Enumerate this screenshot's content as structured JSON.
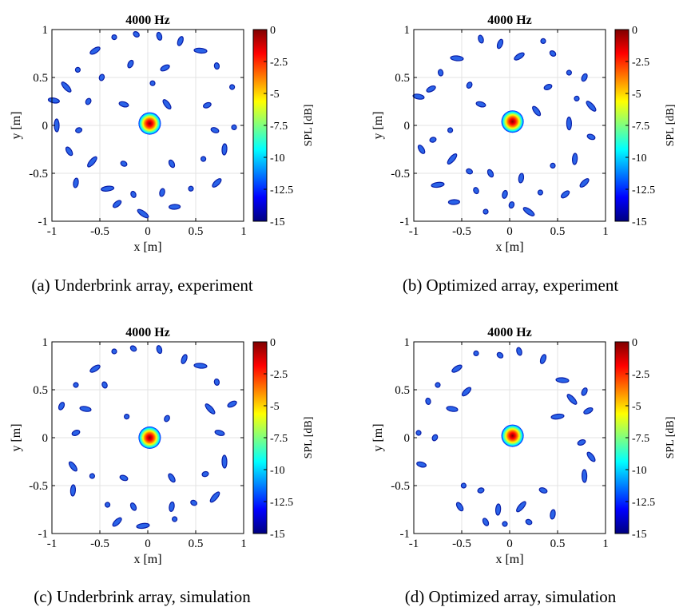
{
  "colors": {
    "colormap": [
      "#00007f",
      "#0000ff",
      "#007fff",
      "#00ffff",
      "#7fff7f",
      "#ffff00",
      "#ff7f00",
      "#ff0000",
      "#7f0000"
    ],
    "axis": "#000000",
    "grid": "#e3e3e3",
    "blob_face": "#2a63e8",
    "blob_edge": "#0a1fa8"
  },
  "chart_data": [
    {
      "type": "heatmap",
      "title": "4000 Hz",
      "xlabel": "x [m]",
      "ylabel": "y [m]",
      "xlim": [
        -1,
        1
      ],
      "ylim": [
        -1,
        1
      ],
      "xticks": [
        -1,
        -0.5,
        0,
        0.5,
        1
      ],
      "yticks": [
        -1,
        -0.5,
        0,
        0.5,
        1
      ],
      "xtick_labels": [
        "-1",
        "-0.5",
        "0",
        "0.5",
        "1"
      ],
      "ytick_labels": [
        "-1",
        "-0.5",
        "0",
        "0.5",
        "1"
      ],
      "grid": true,
      "colorbar": {
        "label": "SPL [dB]",
        "range": [
          -15,
          0
        ],
        "ticks": [
          "0",
          "-2.5",
          "-5",
          "-7.5",
          "-10",
          "-12.5",
          "-15"
        ]
      },
      "caption": "(a)  Underbrink array, experiment",
      "main_source": {
        "x": 0.02,
        "y": 0.02,
        "peak_db": 0
      },
      "sidelobes": [
        {
          "x": -0.35,
          "y": 0.92
        },
        {
          "x": -0.12,
          "y": 0.95
        },
        {
          "x": 0.12,
          "y": 0.93
        },
        {
          "x": 0.34,
          "y": 0.88
        },
        {
          "x": -0.55,
          "y": 0.78
        },
        {
          "x": 0.55,
          "y": 0.78
        },
        {
          "x": -0.73,
          "y": 0.58
        },
        {
          "x": 0.72,
          "y": 0.62
        },
        {
          "x": -0.18,
          "y": 0.64
        },
        {
          "x": 0.18,
          "y": 0.6
        },
        {
          "x": -0.98,
          "y": 0.26
        },
        {
          "x": -0.85,
          "y": 0.4
        },
        {
          "x": 0.88,
          "y": 0.4
        },
        {
          "x": -0.62,
          "y": 0.25
        },
        {
          "x": 0.62,
          "y": 0.21
        },
        {
          "x": -0.25,
          "y": 0.22
        },
        {
          "x": 0.2,
          "y": 0.22
        },
        {
          "x": -0.95,
          "y": 0.0
        },
        {
          "x": 0.9,
          "y": -0.02
        },
        {
          "x": -0.72,
          "y": -0.05
        },
        {
          "x": 0.7,
          "y": -0.05
        },
        {
          "x": -0.82,
          "y": -0.27
        },
        {
          "x": 0.8,
          "y": -0.25
        },
        {
          "x": -0.58,
          "y": -0.38
        },
        {
          "x": 0.58,
          "y": -0.35
        },
        {
          "x": -0.25,
          "y": -0.4
        },
        {
          "x": 0.25,
          "y": -0.4
        },
        {
          "x": -0.75,
          "y": -0.6
        },
        {
          "x": 0.72,
          "y": -0.6
        },
        {
          "x": -0.42,
          "y": -0.66
        },
        {
          "x": 0.45,
          "y": -0.66
        },
        {
          "x": -0.15,
          "y": -0.72
        },
        {
          "x": 0.15,
          "y": -0.7
        },
        {
          "x": -0.32,
          "y": -0.82
        },
        {
          "x": 0.28,
          "y": -0.85
        },
        {
          "x": -0.05,
          "y": -0.92
        },
        {
          "x": 0.05,
          "y": 0.44
        },
        {
          "x": -0.48,
          "y": 0.5
        }
      ]
    },
    {
      "type": "heatmap",
      "title": "4000 Hz",
      "xlabel": "x [m]",
      "ylabel": "y [m]",
      "xlim": [
        -1,
        1
      ],
      "ylim": [
        -1,
        1
      ],
      "xticks": [
        -1,
        -0.5,
        0,
        0.5,
        1
      ],
      "yticks": [
        -1,
        -0.5,
        0,
        0.5,
        1
      ],
      "xtick_labels": [
        "-1",
        "-0.5",
        "0",
        "0.5",
        "1"
      ],
      "ytick_labels": [
        "-1",
        "-0.5",
        "0",
        "0.5",
        "1"
      ],
      "grid": true,
      "colorbar": {
        "label": "SPL [dB]",
        "range": [
          -15,
          0
        ],
        "ticks": [
          "0",
          "-2.5",
          "-5",
          "-7.5",
          "-10",
          "-12.5",
          "-15"
        ]
      },
      "caption": "(b)  Optimized array, experiment",
      "main_source": {
        "x": 0.03,
        "y": 0.04,
        "peak_db": 0
      },
      "sidelobes": [
        {
          "x": 0.35,
          "y": 0.88
        },
        {
          "x": 0.45,
          "y": 0.75
        },
        {
          "x": -0.3,
          "y": 0.9
        },
        {
          "x": -0.1,
          "y": 0.85
        },
        {
          "x": 0.1,
          "y": 0.72
        },
        {
          "x": -0.55,
          "y": 0.7
        },
        {
          "x": 0.62,
          "y": 0.55
        },
        {
          "x": -0.72,
          "y": 0.55
        },
        {
          "x": 0.78,
          "y": 0.5
        },
        {
          "x": -0.82,
          "y": 0.38
        },
        {
          "x": -0.95,
          "y": 0.3
        },
        {
          "x": 0.85,
          "y": 0.2
        },
        {
          "x": 0.7,
          "y": 0.28
        },
        {
          "x": -0.42,
          "y": 0.42
        },
        {
          "x": 0.4,
          "y": 0.4
        },
        {
          "x": -0.3,
          "y": 0.22
        },
        {
          "x": 0.28,
          "y": 0.15
        },
        {
          "x": 0.62,
          "y": 0.02
        },
        {
          "x": -0.62,
          "y": -0.05
        },
        {
          "x": -0.8,
          "y": -0.15
        },
        {
          "x": 0.85,
          "y": -0.12
        },
        {
          "x": -0.92,
          "y": -0.25
        },
        {
          "x": 0.68,
          "y": -0.35
        },
        {
          "x": -0.6,
          "y": -0.35
        },
        {
          "x": 0.45,
          "y": -0.42
        },
        {
          "x": -0.42,
          "y": -0.48
        },
        {
          "x": -0.2,
          "y": -0.5
        },
        {
          "x": 0.12,
          "y": -0.55
        },
        {
          "x": 0.78,
          "y": -0.6
        },
        {
          "x": -0.75,
          "y": -0.62
        },
        {
          "x": 0.32,
          "y": -0.7
        },
        {
          "x": -0.35,
          "y": -0.68
        },
        {
          "x": -0.05,
          "y": -0.72
        },
        {
          "x": 0.58,
          "y": -0.72
        },
        {
          "x": -0.58,
          "y": -0.8
        },
        {
          "x": 0.2,
          "y": -0.9
        },
        {
          "x": -0.25,
          "y": -0.9
        },
        {
          "x": 0.02,
          "y": -0.83
        }
      ]
    },
    {
      "type": "heatmap",
      "title": "4000 Hz",
      "xlabel": "x [m]",
      "ylabel": "y [m]",
      "xlim": [
        -1,
        1
      ],
      "ylim": [
        -1,
        1
      ],
      "xticks": [
        -1,
        -0.5,
        0,
        0.5,
        1
      ],
      "yticks": [
        -1,
        -0.5,
        0,
        0.5,
        1
      ],
      "xtick_labels": [
        "-1",
        "-0.5",
        "0",
        "0.5",
        "1"
      ],
      "ytick_labels": [
        "-1",
        "-0.5",
        "0",
        "0.5",
        "1"
      ],
      "grid": true,
      "colorbar": {
        "label": "SPL [dB]",
        "range": [
          -15,
          0
        ],
        "ticks": [
          "0",
          "-2.5",
          "-5",
          "-7.5",
          "-10",
          "-12.5",
          "-15"
        ]
      },
      "caption": "(c)  Underbrink array, simulation",
      "main_source": {
        "x": 0.02,
        "y": 0.0,
        "peak_db": 0
      },
      "sidelobes": [
        {
          "x": -0.35,
          "y": 0.9
        },
        {
          "x": -0.15,
          "y": 0.93
        },
        {
          "x": 0.12,
          "y": 0.92
        },
        {
          "x": 0.38,
          "y": 0.82
        },
        {
          "x": -0.55,
          "y": 0.72
        },
        {
          "x": 0.55,
          "y": 0.75
        },
        {
          "x": -0.75,
          "y": 0.55
        },
        {
          "x": 0.72,
          "y": 0.58
        },
        {
          "x": -0.9,
          "y": 0.33
        },
        {
          "x": 0.88,
          "y": 0.35
        },
        {
          "x": -0.65,
          "y": 0.3
        },
        {
          "x": 0.65,
          "y": 0.3
        },
        {
          "x": -0.22,
          "y": 0.22
        },
        {
          "x": 0.2,
          "y": 0.2
        },
        {
          "x": -0.75,
          "y": 0.05
        },
        {
          "x": 0.75,
          "y": 0.05
        },
        {
          "x": -0.78,
          "y": -0.3
        },
        {
          "x": 0.8,
          "y": -0.25
        },
        {
          "x": -0.58,
          "y": -0.4
        },
        {
          "x": 0.6,
          "y": -0.38
        },
        {
          "x": -0.25,
          "y": -0.42
        },
        {
          "x": 0.25,
          "y": -0.42
        },
        {
          "x": -0.78,
          "y": -0.55
        },
        {
          "x": 0.7,
          "y": -0.62
        },
        {
          "x": -0.42,
          "y": -0.7
        },
        {
          "x": 0.48,
          "y": -0.68
        },
        {
          "x": -0.15,
          "y": -0.72
        },
        {
          "x": 0.25,
          "y": -0.72
        },
        {
          "x": -0.32,
          "y": -0.88
        },
        {
          "x": -0.05,
          "y": -0.92
        },
        {
          "x": 0.28,
          "y": -0.85
        },
        {
          "x": -0.45,
          "y": 0.55
        }
      ]
    },
    {
      "type": "heatmap",
      "title": "4000 Hz",
      "xlabel": "x [m]",
      "ylabel": "y [m]",
      "xlim": [
        -1,
        1
      ],
      "ylim": [
        -1,
        1
      ],
      "xticks": [
        -1,
        -0.5,
        0,
        0.5,
        1
      ],
      "yticks": [
        -1,
        -0.5,
        0,
        0.5,
        1
      ],
      "xtick_labels": [
        "-1",
        "-0.5",
        "0",
        "0.5",
        "1"
      ],
      "ytick_labels": [
        "-1",
        "-0.5",
        "0",
        "0.5",
        "1"
      ],
      "grid": true,
      "colorbar": {
        "label": "SPL [dB]",
        "range": [
          -15,
          0
        ],
        "ticks": [
          "0",
          "-2.5",
          "-5",
          "-7.5",
          "-10",
          "-12.5",
          "-15"
        ]
      },
      "caption": "(d)  Optimized array, simulation",
      "main_source": {
        "x": 0.03,
        "y": 0.02,
        "peak_db": 0
      },
      "sidelobes": [
        {
          "x": -0.35,
          "y": 0.88
        },
        {
          "x": -0.1,
          "y": 0.86
        },
        {
          "x": 0.1,
          "y": 0.9
        },
        {
          "x": 0.35,
          "y": 0.82
        },
        {
          "x": -0.55,
          "y": 0.72
        },
        {
          "x": 0.55,
          "y": 0.6
        },
        {
          "x": -0.75,
          "y": 0.55
        },
        {
          "x": -0.85,
          "y": 0.38
        },
        {
          "x": 0.78,
          "y": 0.48
        },
        {
          "x": 0.82,
          "y": 0.28
        },
        {
          "x": -0.6,
          "y": 0.3
        },
        {
          "x": 0.65,
          "y": 0.4
        },
        {
          "x": -0.95,
          "y": 0.05
        },
        {
          "x": -0.78,
          "y": 0.0
        },
        {
          "x": 0.75,
          "y": -0.05
        },
        {
          "x": -0.92,
          "y": -0.28
        },
        {
          "x": 0.85,
          "y": -0.2
        },
        {
          "x": 0.78,
          "y": -0.4
        },
        {
          "x": -0.48,
          "y": -0.5
        },
        {
          "x": -0.3,
          "y": -0.55
        },
        {
          "x": 0.35,
          "y": -0.55
        },
        {
          "x": -0.52,
          "y": -0.72
        },
        {
          "x": -0.12,
          "y": -0.75
        },
        {
          "x": 0.12,
          "y": -0.72
        },
        {
          "x": -0.05,
          "y": -0.9
        },
        {
          "x": 0.2,
          "y": -0.88
        },
        {
          "x": -0.25,
          "y": -0.88
        },
        {
          "x": 0.45,
          "y": -0.8
        },
        {
          "x": -0.45,
          "y": 0.48
        },
        {
          "x": 0.5,
          "y": 0.22
        }
      ]
    }
  ]
}
